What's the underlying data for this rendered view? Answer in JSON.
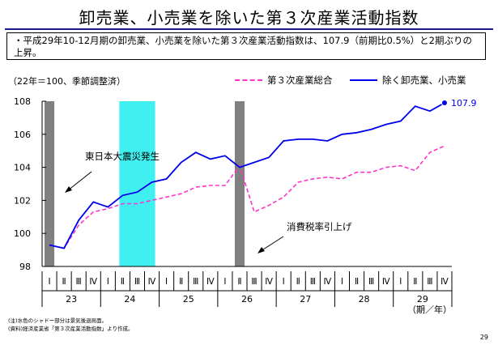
{
  "title": "卸売業、小売業を除いた第３次産業活動指数",
  "summary": "・平成29年10-12月期の卸売業、小売業を除いた第３次産業活動指数は、107.9（前期比0.5%）と2期ぶりの上昇。",
  "unit_note": "（22年＝100、季節調整済）",
  "footnotes": [
    "(注)水色のシャドー部分は景気後退局面。",
    "(資料)経済産業省「第３次産業活動指数」より作成。"
  ],
  "page_number": "29",
  "colors": {
    "series_total": "#ff33cc",
    "series_ex": "#0000ee",
    "recession": "#40f0f0",
    "event_bar": "#808080",
    "title_rule": "#1a1a8c"
  },
  "chart_data": {
    "type": "line",
    "xlabel": "（期／年）",
    "ylim": [
      98,
      108
    ],
    "yticks": [
      98,
      100,
      102,
      104,
      106,
      108
    ],
    "quarters": [
      "Ⅰ",
      "Ⅱ",
      "Ⅲ",
      "Ⅳ",
      "Ⅰ",
      "Ⅱ",
      "Ⅲ",
      "Ⅳ",
      "Ⅰ",
      "Ⅱ",
      "Ⅲ",
      "Ⅳ",
      "Ⅰ",
      "Ⅱ",
      "Ⅲ",
      "Ⅳ",
      "Ⅰ",
      "Ⅱ",
      "Ⅲ",
      "Ⅳ",
      "Ⅰ",
      "Ⅱ",
      "Ⅲ",
      "Ⅳ",
      "Ⅰ",
      "Ⅱ",
      "Ⅲ",
      "Ⅳ"
    ],
    "years": [
      "23",
      "24",
      "25",
      "26",
      "27",
      "28",
      "29"
    ],
    "series": [
      {
        "name": "第３次産業総合",
        "style": "dashed",
        "values": [
          99.3,
          99.1,
          100.5,
          101.3,
          101.5,
          101.8,
          101.8,
          102.0,
          102.2,
          102.4,
          102.8,
          102.9,
          102.9,
          104.1,
          101.3,
          101.7,
          102.2,
          103.1,
          103.3,
          103.4,
          103.3,
          103.7,
          103.7,
          104.0,
          104.1,
          103.8,
          104.9,
          105.3
        ]
      },
      {
        "name": "除く卸売業、小売業",
        "style": "solid",
        "values": [
          99.3,
          99.1,
          100.8,
          101.9,
          101.6,
          102.3,
          102.5,
          103.1,
          103.3,
          104.3,
          104.9,
          104.5,
          104.7,
          104.0,
          104.3,
          104.6,
          105.6,
          105.7,
          105.7,
          105.6,
          106.0,
          106.1,
          106.3,
          106.6,
          106.8,
          107.7,
          107.4,
          107.9
        ]
      }
    ],
    "last_value_label": "107.9",
    "shaded_periods": [
      {
        "kind": "event",
        "quarter_index": 0
      },
      {
        "kind": "recession",
        "start_index": 5,
        "end_index": 7
      },
      {
        "kind": "event",
        "quarter_index": 13
      }
    ],
    "annotations": [
      {
        "text": "東日本大震災発生"
      },
      {
        "text": "消費税率引上げ"
      }
    ],
    "grid": false,
    "legend_position": "top-right"
  }
}
